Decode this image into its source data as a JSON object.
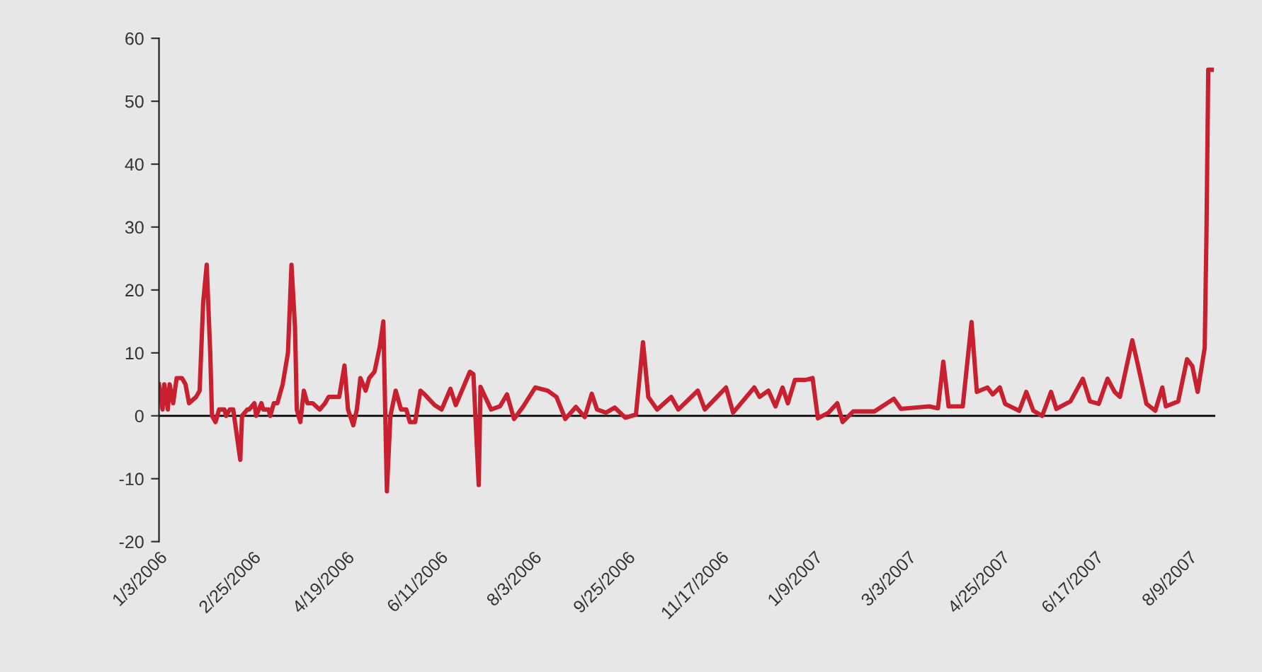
{
  "chart_data": {
    "type": "line",
    "x": [
      "2006-01-03",
      "2006-01-05",
      "2006-01-06",
      "2006-01-08",
      "2006-01-09",
      "2006-01-11",
      "2006-01-13",
      "2006-01-16",
      "2006-01-18",
      "2006-01-20",
      "2006-01-24",
      "2006-01-26",
      "2006-01-28",
      "2006-01-30",
      "2006-02-01",
      "2006-02-02",
      "2006-02-04",
      "2006-02-06",
      "2006-02-09",
      "2006-02-10",
      "2006-02-12",
      "2006-02-14",
      "2006-02-15",
      "2006-02-18",
      "2006-02-19",
      "2006-02-22",
      "2006-02-23",
      "2006-02-26",
      "2006-02-27",
      "2006-03-02",
      "2006-03-03",
      "2006-03-06",
      "2006-03-07",
      "2006-03-09",
      "2006-03-11",
      "2006-03-14",
      "2006-03-17",
      "2006-03-19",
      "2006-03-21",
      "2006-03-22",
      "2006-03-24",
      "2006-03-26",
      "2006-03-28",
      "2006-03-31",
      "2006-04-04",
      "2006-04-07",
      "2006-04-09",
      "2006-04-15",
      "2006-04-18",
      "2006-04-20",
      "2006-04-23",
      "2006-04-25",
      "2006-04-27",
      "2006-04-30",
      "2006-05-02",
      "2006-05-05",
      "2006-05-08",
      "2006-05-10",
      "2006-05-12",
      "2006-05-14",
      "2006-05-17",
      "2006-05-20",
      "2006-05-23",
      "2006-05-25",
      "2006-05-28",
      "2006-05-31",
      "2006-06-02",
      "2006-06-08",
      "2006-06-12",
      "2006-06-17",
      "2006-06-20",
      "2006-06-28",
      "2006-06-30",
      "2006-07-03",
      "2006-07-04",
      "2006-07-10",
      "2006-07-15",
      "2006-07-19",
      "2006-07-23",
      "2006-07-28",
      "2006-08-04",
      "2006-08-11",
      "2006-08-16",
      "2006-08-21",
      "2006-08-27",
      "2006-09-01",
      "2006-09-05",
      "2006-09-08",
      "2006-09-13",
      "2006-09-18",
      "2006-09-24",
      "2006-09-30",
      "2006-10-04",
      "2006-10-07",
      "2006-10-12",
      "2006-10-20",
      "2006-10-24",
      "2006-11-04",
      "2006-11-08",
      "2006-11-20",
      "2006-11-24",
      "2006-12-06",
      "2006-12-09",
      "2006-12-14",
      "2006-12-18",
      "2006-12-22",
      "2006-12-25",
      "2006-12-29",
      "2007-01-04",
      "2007-01-08",
      "2007-01-11",
      "2007-01-17",
      "2007-01-22",
      "2007-01-25",
      "2007-01-31",
      "2007-02-12",
      "2007-02-23",
      "2007-02-27",
      "2007-03-15",
      "2007-03-20",
      "2007-03-23",
      "2007-03-26",
      "2007-04-03",
      "2007-04-08",
      "2007-04-11",
      "2007-04-17",
      "2007-04-20",
      "2007-04-24",
      "2007-04-27",
      "2007-05-05",
      "2007-05-09",
      "2007-05-13",
      "2007-05-18",
      "2007-05-23",
      "2007-05-26",
      "2007-06-03",
      "2007-06-10",
      "2007-06-14",
      "2007-06-19",
      "2007-06-24",
      "2007-06-28",
      "2007-07-01",
      "2007-07-08",
      "2007-07-11",
      "2007-07-16",
      "2007-07-21",
      "2007-07-25",
      "2007-07-27",
      "2007-08-03",
      "2007-08-08",
      "2007-08-11",
      "2007-08-14",
      "2007-08-18",
      "2007-08-19",
      "2007-08-20",
      "2007-08-22"
    ],
    "series": [
      {
        "color": "#c8202f",
        "values": [
          5,
          1,
          5,
          1,
          5,
          2,
          6,
          6,
          5,
          2,
          3,
          4,
          18,
          24,
          10,
          0,
          -1,
          1,
          1,
          0,
          1,
          1,
          -1,
          -7,
          0,
          1,
          1,
          2,
          0,
          2,
          1,
          1,
          0,
          2,
          2,
          5,
          10,
          24,
          14,
          1,
          -1,
          4,
          2,
          2,
          1,
          2,
          3,
          3,
          8,
          1,
          -1.5,
          1,
          6,
          4,
          6,
          7,
          11,
          15,
          -12,
          0,
          4,
          1,
          1,
          -1,
          -1,
          4,
          3.5,
          1.7,
          1,
          4.3,
          1.7,
          7,
          6.6,
          -11,
          4.6,
          1,
          1.5,
          3.4,
          -0.5,
          1.4,
          4.5,
          4,
          3,
          -0.5,
          1.4,
          -0.2,
          3.5,
          1,
          0.5,
          1.3,
          -0.3,
          0.2,
          11.7,
          3,
          1,
          3,
          1,
          4,
          1,
          4.5,
          0.5,
          4.5,
          3,
          4,
          1.5,
          4.5,
          2,
          5.7,
          5.7,
          6,
          -0.4,
          0.5,
          2,
          -1,
          0.7,
          0.7,
          2.7,
          1.1,
          1.5,
          1.2,
          8.6,
          1.5,
          1.5,
          14.9,
          3.8,
          4.5,
          3.4,
          4.5,
          1.9,
          0.8,
          3.8,
          0.8,
          0,
          3.8,
          1.1,
          2.3,
          5.9,
          2.3,
          1.9,
          5.9,
          3.8,
          3,
          12,
          8.3,
          1.9,
          0.8,
          4.5,
          1.5,
          2.3,
          9,
          7.9,
          3.8,
          10.8,
          29,
          55,
          55
        ]
      }
    ],
    "xlim": [
      "2006-01-03",
      "2007-08-24"
    ],
    "xticks": [
      {
        "value": "2006-01-03",
        "label": "1/3/2006"
      },
      {
        "value": "2006-02-25",
        "label": "2/25/2006"
      },
      {
        "value": "2006-04-19",
        "label": "4/19/2006"
      },
      {
        "value": "2006-06-11",
        "label": "6/11/2006"
      },
      {
        "value": "2006-08-03",
        "label": "8/3/2006"
      },
      {
        "value": "2006-09-25",
        "label": "9/25/2006"
      },
      {
        "value": "2006-11-17",
        "label": "11/17/2006"
      },
      {
        "value": "2007-01-09",
        "label": "1/9/2007"
      },
      {
        "value": "2007-03-03",
        "label": "3/3/2007"
      },
      {
        "value": "2007-04-25",
        "label": "4/25/2007"
      },
      {
        "value": "2007-06-17",
        "label": "6/17/2007"
      },
      {
        "value": "2007-08-09",
        "label": "8/9/2007"
      }
    ],
    "ylim": [
      -20,
      60
    ],
    "yticks": [
      -20,
      -10,
      0,
      10,
      20,
      30,
      40,
      50,
      60
    ],
    "ref_lines": [
      {
        "axis": "y",
        "value": 0,
        "color": "#000000",
        "line_style": "solid"
      }
    ],
    "grid": false,
    "marker": "none",
    "line_style": "solid"
  }
}
